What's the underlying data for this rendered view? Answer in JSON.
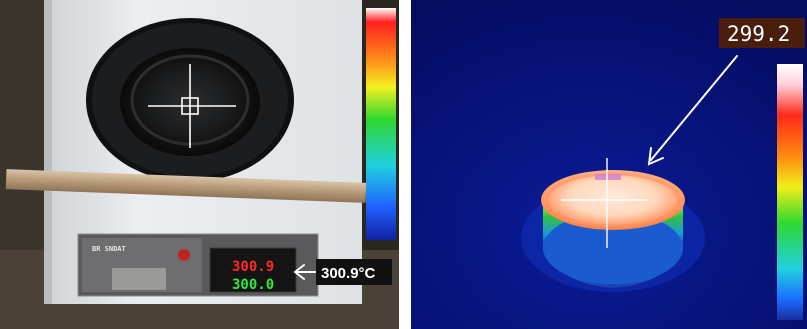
{
  "left_panel": {
    "display": {
      "pv": "300.9",
      "sv": "300.0",
      "brand": "BR SNDAT"
    },
    "callout": {
      "text": "300.9°C"
    },
    "colors": {
      "enclosure": "#e6e8ea",
      "disc": "#141516",
      "pv_led": "#ff2a20",
      "sv_led": "#35e83a"
    }
  },
  "right_panel": {
    "readout": {
      "text": "299.2"
    },
    "colors": {
      "background": "#06127a",
      "object_hot": "#ffe0cc",
      "readout_box": "#4a1e0c"
    }
  },
  "icons": [
    "crosshair-icon",
    "arrow-icon"
  ]
}
